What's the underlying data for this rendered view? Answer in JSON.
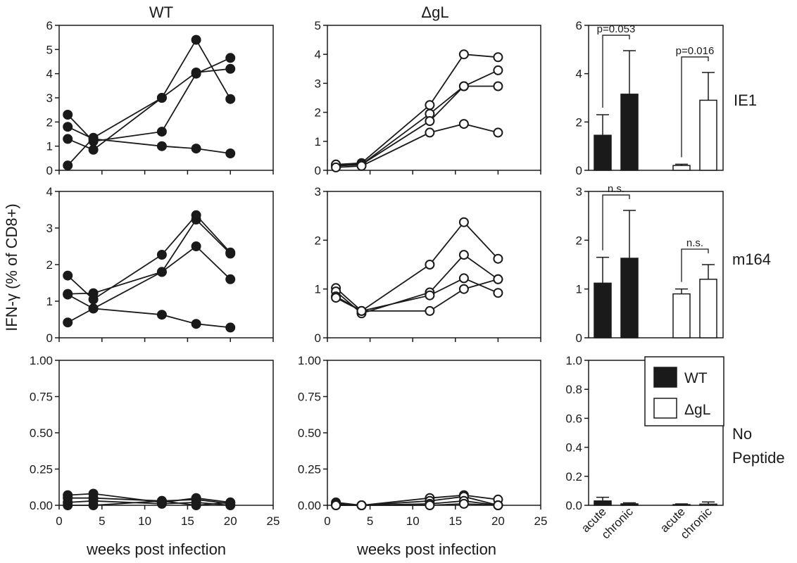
{
  "figure": {
    "col_titles": [
      "WT",
      "ΔgL"
    ],
    "row_labels": [
      "IE1",
      "m164",
      "No\nPeptide"
    ],
    "ylabel": "IFN-γ (% of CD8+)",
    "xlabel": "weeks post infection",
    "legend": [
      {
        "label": "WT",
        "fill": "#1a1a1a"
      },
      {
        "label": "ΔgL",
        "fill": "#ffffff"
      }
    ],
    "bar_categories": [
      "acute",
      "chronic",
      "acute",
      "chronic"
    ]
  },
  "chart_data": [
    {
      "id": "wt-ie1",
      "type": "line",
      "marker": "filled",
      "xlim": [
        0,
        25
      ],
      "xticks": [
        0,
        5,
        10,
        15,
        20,
        25
      ],
      "ylim": [
        0,
        6
      ],
      "yticks": [
        "0",
        "1",
        "2",
        "3",
        "4",
        "5",
        "6"
      ],
      "title": "WT",
      "row": "IE1",
      "series": [
        {
          "x": [
            1,
            4,
            12,
            16,
            20
          ],
          "y": [
            2.3,
            1.2,
            1.6,
            4.0,
            4.65
          ]
        },
        {
          "x": [
            1,
            4,
            12,
            16,
            20
          ],
          "y": [
            1.8,
            1.3,
            1.0,
            0.9,
            0.7
          ]
        },
        {
          "x": [
            1,
            4,
            12,
            16,
            20
          ],
          "y": [
            1.3,
            0.85,
            3.0,
            5.4,
            2.95
          ]
        },
        {
          "x": [
            1,
            4,
            12,
            16,
            20
          ],
          "y": [
            0.2,
            1.35,
            3.0,
            4.05,
            4.2
          ]
        }
      ]
    },
    {
      "id": "dgl-ie1",
      "type": "line",
      "marker": "open",
      "xlim": [
        0,
        25
      ],
      "xticks": [
        0,
        5,
        10,
        15,
        20,
        25
      ],
      "ylim": [
        0,
        5
      ],
      "yticks": [
        "0",
        "1",
        "2",
        "3",
        "4",
        "5"
      ],
      "title": "ΔgL",
      "row": "IE1",
      "series": [
        {
          "x": [
            1,
            4,
            12,
            16,
            20
          ],
          "y": [
            0.2,
            0.25,
            2.25,
            4.0,
            3.9
          ]
        },
        {
          "x": [
            1,
            4,
            12,
            16,
            20
          ],
          "y": [
            0.15,
            0.2,
            1.95,
            2.9,
            3.45
          ]
        },
        {
          "x": [
            1,
            4,
            12,
            16,
            20
          ],
          "y": [
            0.2,
            0.2,
            1.7,
            2.9,
            2.9
          ]
        },
        {
          "x": [
            1,
            4,
            12,
            16,
            20
          ],
          "y": [
            0.1,
            0.15,
            1.3,
            1.6,
            1.3
          ]
        }
      ]
    },
    {
      "id": "bar-ie1",
      "type": "bar",
      "ylim": [
        0,
        6
      ],
      "yticks": [
        "0",
        "2",
        "4",
        "6"
      ],
      "values": [
        1.45,
        3.15,
        0.2,
        2.9
      ],
      "errors": [
        0.85,
        1.8,
        0.05,
        1.15
      ],
      "annotations": [
        {
          "text": "p=0.053",
          "bars": [
            0,
            1
          ]
        },
        {
          "text": "p=0.016",
          "bars": [
            2,
            3
          ]
        }
      ]
    },
    {
      "id": "wt-m164",
      "type": "line",
      "marker": "filled",
      "xlim": [
        0,
        25
      ],
      "xticks": [
        0,
        5,
        10,
        15,
        20,
        25
      ],
      "ylim": [
        0,
        4
      ],
      "yticks": [
        "0",
        "1",
        "2",
        "3",
        "4"
      ],
      "series": [
        {
          "x": [
            1,
            4,
            12,
            16,
            20
          ],
          "y": [
            1.7,
            1.05,
            2.27,
            3.35,
            2.33
          ]
        },
        {
          "x": [
            1,
            4,
            12,
            16,
            20
          ],
          "y": [
            1.2,
            1.22,
            1.8,
            3.23,
            2.3
          ]
        },
        {
          "x": [
            1,
            4,
            12,
            16,
            20
          ],
          "y": [
            1.18,
            0.8,
            0.63,
            0.38,
            0.28
          ]
        },
        {
          "x": [
            1,
            4,
            12,
            16,
            20
          ],
          "y": [
            0.42,
            0.8,
            1.8,
            2.5,
            1.6
          ]
        }
      ]
    },
    {
      "id": "dgl-m164",
      "type": "line",
      "marker": "open",
      "xlim": [
        0,
        25
      ],
      "xticks": [
        0,
        5,
        10,
        15,
        20,
        25
      ],
      "ylim": [
        0,
        3
      ],
      "yticks": [
        "0",
        "1",
        "2",
        "3"
      ],
      "series": [
        {
          "x": [
            1,
            4,
            12,
            16,
            20
          ],
          "y": [
            1.02,
            0.55,
            1.5,
            2.37,
            1.62
          ]
        },
        {
          "x": [
            1,
            4,
            12,
            16,
            20
          ],
          "y": [
            0.95,
            0.5,
            0.93,
            1.7,
            1.2
          ]
        },
        {
          "x": [
            1,
            4,
            12,
            16,
            20
          ],
          "y": [
            0.85,
            0.55,
            0.87,
            1.22,
            0.92
          ]
        },
        {
          "x": [
            1,
            4,
            12,
            16,
            20
          ],
          "y": [
            0.82,
            0.55,
            0.55,
            1.0,
            1.2
          ]
        }
      ]
    },
    {
      "id": "bar-m164",
      "type": "bar",
      "ylim": [
        0,
        3
      ],
      "yticks": [
        "0",
        "1",
        "2",
        "3"
      ],
      "values": [
        1.12,
        1.63,
        0.9,
        1.2
      ],
      "errors": [
        0.53,
        0.98,
        0.1,
        0.3
      ],
      "annotations": [
        {
          "text": "n.s.",
          "bars": [
            0,
            1
          ]
        },
        {
          "text": "n.s.",
          "bars": [
            2,
            3
          ]
        }
      ]
    },
    {
      "id": "wt-none",
      "type": "line",
      "marker": "filled",
      "xlim": [
        0,
        25
      ],
      "xticks": [
        0,
        5,
        10,
        15,
        20,
        25
      ],
      "ylim": [
        0,
        1
      ],
      "yticks": [
        "0.00",
        "0.25",
        "0.50",
        "0.75",
        "1.00"
      ],
      "series": [
        {
          "x": [
            1,
            4,
            12,
            16,
            20
          ],
          "y": [
            0.07,
            0.08,
            0.02,
            0.05,
            0.02
          ]
        },
        {
          "x": [
            1,
            4,
            12,
            16,
            20
          ],
          "y": [
            0.05,
            0.05,
            0.03,
            0.04,
            0.01
          ]
        },
        {
          "x": [
            1,
            4,
            12,
            16,
            20
          ],
          "y": [
            0.02,
            0.03,
            0.01,
            0.02,
            0.0
          ]
        },
        {
          "x": [
            1,
            4,
            12,
            16,
            20
          ],
          "y": [
            0.0,
            0.0,
            0.03,
            0.0,
            0.02
          ]
        }
      ]
    },
    {
      "id": "dgl-none",
      "type": "line",
      "marker": "open",
      "xlim": [
        0,
        25
      ],
      "xticks": [
        0,
        5,
        10,
        15,
        20,
        25
      ],
      "ylim": [
        0,
        1
      ],
      "yticks": [
        "0.00",
        "0.25",
        "0.50",
        "0.75",
        "1.00"
      ],
      "series": [
        {
          "x": [
            1,
            4,
            12,
            16,
            20
          ],
          "y": [
            0.02,
            0.0,
            0.05,
            0.07,
            0.04
          ]
        },
        {
          "x": [
            1,
            4,
            12,
            16,
            20
          ],
          "y": [
            0.01,
            0.0,
            0.03,
            0.06,
            0.0
          ]
        },
        {
          "x": [
            1,
            4,
            12,
            16,
            20
          ],
          "y": [
            0.0,
            0.0,
            0.01,
            0.03,
            0.0
          ]
        },
        {
          "x": [
            1,
            4,
            12,
            16,
            20
          ],
          "y": [
            0.0,
            0.0,
            0.0,
            0.01,
            0.0
          ]
        }
      ]
    },
    {
      "id": "bar-none",
      "type": "bar",
      "ylim": [
        0,
        1
      ],
      "yticks": [
        "0.0",
        "0.2",
        "0.4",
        "0.6",
        "0.8",
        "1.0"
      ],
      "values": [
        0.03,
        0.01,
        0.005,
        0.008
      ],
      "errors": [
        0.025,
        0.007,
        0.005,
        0.015
      ],
      "annotations": []
    }
  ]
}
